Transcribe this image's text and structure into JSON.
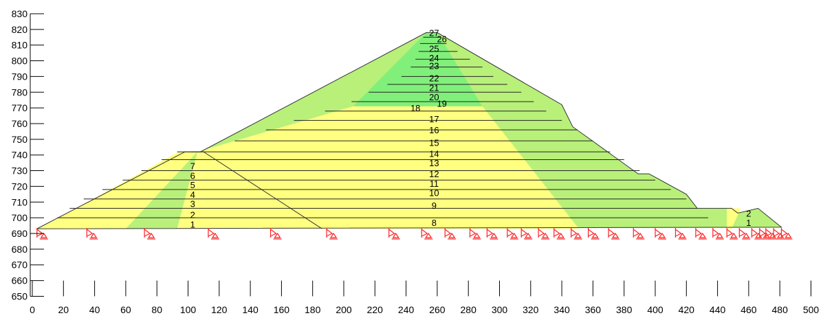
{
  "colors": {
    "shell": "#b8f07a",
    "core": "#ffff80",
    "inner_core": "#80f07a",
    "support": "#ff2020",
    "line": "#000000"
  },
  "y_axis": {
    "ticks": [
      830,
      820,
      810,
      800,
      790,
      780,
      770,
      760,
      750,
      740,
      730,
      720,
      710,
      700,
      690,
      680,
      670,
      660,
      650
    ]
  },
  "x_axis": {
    "ticks": [
      0,
      20,
      40,
      60,
      80,
      100,
      120,
      140,
      160,
      180,
      200,
      220,
      240,
      260,
      280,
      300,
      320,
      340,
      360,
      380,
      400,
      420,
      440,
      460,
      480,
      500
    ]
  },
  "dam": {
    "outline": [
      [
        3,
        693
      ],
      [
        98,
        742
      ],
      [
        108,
        742
      ],
      [
        253,
        818
      ],
      [
        260,
        818
      ],
      [
        340,
        772
      ],
      [
        347,
        758
      ],
      [
        389,
        728
      ],
      [
        396,
        728
      ],
      [
        420,
        715
      ],
      [
        427,
        706
      ],
      [
        449,
        706
      ],
      [
        453,
        703
      ],
      [
        466,
        706
      ],
      [
        481,
        694
      ]
    ],
    "inner_core_region": [
      [
        253,
        818
      ],
      [
        260,
        818
      ],
      [
        289,
        771
      ],
      [
        206,
        771
      ]
    ],
    "upstream_core": [
      [
        4,
        693
      ],
      [
        94,
        742
      ],
      [
        106,
        742
      ],
      [
        60,
        693
      ]
    ],
    "main_core": [
      [
        106,
        742
      ],
      [
        206,
        771
      ],
      [
        289,
        771
      ],
      [
        351,
        693
      ],
      [
        93,
        693
      ]
    ],
    "downstream_core": [
      [
        446,
        706
      ],
      [
        455,
        706
      ],
      [
        449,
        693
      ],
      [
        446,
        693
      ]
    ],
    "coffer_outline": [
      [
        102,
        742
      ],
      [
        110,
        742
      ],
      [
        186,
        693
      ]
    ],
    "layers": [
      {
        "label": "1",
        "y": 700,
        "x1": 16,
        "x2": 434
      },
      {
        "label": "2",
        "y": 706,
        "x1": 24,
        "x2": 427
      },
      {
        "label": "3",
        "y": 712,
        "x1": 33,
        "x2": 420
      },
      {
        "label": "4",
        "y": 718,
        "x1": 45,
        "x2": 410
      },
      {
        "label": "5",
        "y": 724,
        "x1": 58,
        "x2": 400
      },
      {
        "label": "6",
        "y": 730,
        "x1": 70,
        "x2": 390
      },
      {
        "label": "7",
        "y": 737,
        "x1": 83,
        "x2": 380
      },
      {
        "label": "8",
        "y": 742,
        "x1": 93,
        "x2": 371
      },
      {
        "label": "9",
        "y": 749,
        "x1": 130,
        "x2": 360
      },
      {
        "label": "10",
        "y": 756,
        "x1": 150,
        "x2": 350
      },
      {
        "label": "11",
        "y": 762,
        "x1": 168,
        "x2": 340
      },
      {
        "label": "12",
        "y": 768,
        "x1": 188,
        "x2": 330
      },
      {
        "label": "13",
        "y": 774,
        "x1": 205,
        "x2": 322
      },
      {
        "label": "14",
        "y": 780,
        "x1": 216,
        "x2": 314
      },
      {
        "label": "15",
        "y": 785,
        "x1": 228,
        "x2": 305
      },
      {
        "label": "16",
        "y": 790,
        "x1": 237,
        "x2": 296
      },
      {
        "label": "17",
        "y": 796,
        "x1": 243,
        "x2": 289
      },
      {
        "label": "18",
        "y": 801,
        "x1": 246,
        "x2": 281
      },
      {
        "label": "19",
        "y": 806,
        "x1": 248,
        "x2": 273
      },
      {
        "label": "20",
        "y": 811,
        "x1": 249,
        "x2": 266
      },
      {
        "label": "21",
        "y": 815,
        "x1": 251,
        "x2": 262
      }
    ],
    "labels": [
      {
        "text": "1",
        "x": 103,
        "y": 696
      },
      {
        "text": "2",
        "x": 103,
        "y": 702
      },
      {
        "text": "3",
        "x": 103,
        "y": 709
      },
      {
        "text": "4",
        "x": 103,
        "y": 715
      },
      {
        "text": "5",
        "x": 103,
        "y": 721
      },
      {
        "text": "6",
        "x": 103,
        "y": 727
      },
      {
        "text": "7",
        "x": 103,
        "y": 733
      },
      {
        "text": "8",
        "x": 258,
        "y": 697
      },
      {
        "text": "9",
        "x": 258,
        "y": 708
      },
      {
        "text": "10",
        "x": 258,
        "y": 716
      },
      {
        "text": "11",
        "x": 258,
        "y": 722
      },
      {
        "text": "12",
        "x": 258,
        "y": 728
      },
      {
        "text": "13",
        "x": 258,
        "y": 735
      },
      {
        "text": "14",
        "x": 258,
        "y": 741
      },
      {
        "text": "15",
        "x": 258,
        "y": 748
      },
      {
        "text": "16",
        "x": 258,
        "y": 756
      },
      {
        "text": "17",
        "x": 258,
        "y": 763
      },
      {
        "text": "18",
        "x": 246,
        "y": 770
      },
      {
        "text": "19",
        "x": 263,
        "y": 773
      },
      {
        "text": "20",
        "x": 258,
        "y": 777
      },
      {
        "text": "21",
        "x": 258,
        "y": 783
      },
      {
        "text": "22",
        "x": 258,
        "y": 789
      },
      {
        "text": "23",
        "x": 258,
        "y": 797
      },
      {
        "text": "24",
        "x": 258,
        "y": 802
      },
      {
        "text": "25",
        "x": 258,
        "y": 808
      },
      {
        "text": "26",
        "x": 263,
        "y": 814
      },
      {
        "text": "27",
        "x": 258,
        "y": 818
      },
      {
        "text": "1",
        "x": 460,
        "y": 697
      },
      {
        "text": "2",
        "x": 460,
        "y": 703
      }
    ]
  },
  "supports": [
    3,
    35,
    72,
    113,
    153,
    189,
    229,
    250,
    265,
    281,
    292,
    305,
    314,
    325,
    335,
    346,
    357,
    370,
    386,
    400,
    413,
    426,
    437,
    446,
    454,
    462,
    467,
    471,
    476,
    481
  ]
}
